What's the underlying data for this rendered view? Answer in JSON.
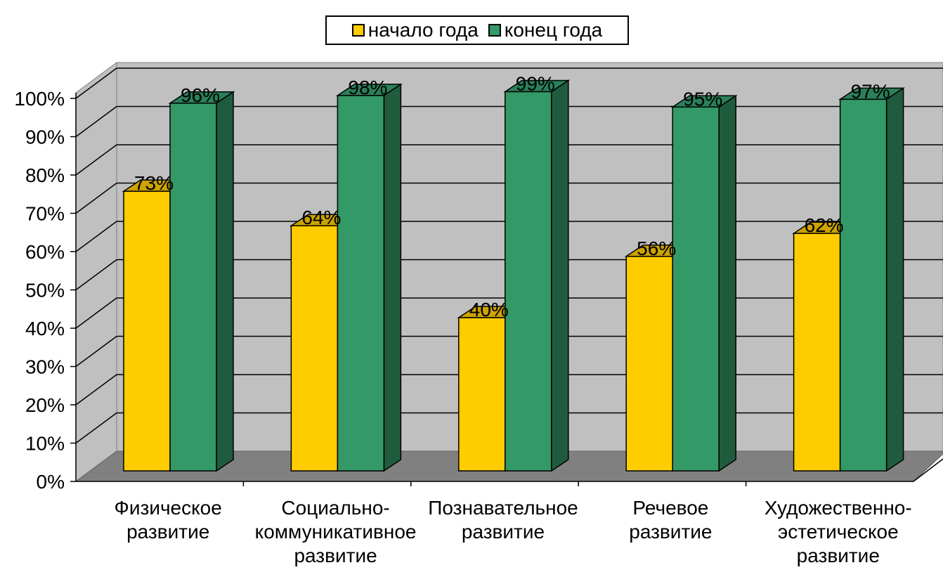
{
  "chart_data": {
    "type": "bar",
    "categories": [
      "Физическое\nразвитие",
      "Социально-\nкоммуникативное\nразвитие",
      "Познавательное\nразвитие",
      "Речевое\nразвитие",
      "Художественно-\nэстетическое\nразвитие"
    ],
    "series": [
      {
        "name": "начало года",
        "values": [
          73,
          64,
          40,
          56,
          62
        ],
        "labels": [
          "73%",
          "64%",
          "40%",
          "56%",
          "62%"
        ]
      },
      {
        "name": "конец года",
        "values": [
          96,
          98,
          99,
          95,
          97
        ],
        "labels": [
          "96%",
          "98%",
          "99%",
          "95%",
          "97%"
        ]
      }
    ],
    "y_ticks": [
      "0%",
      "10%",
      "20%",
      "30%",
      "40%",
      "50%",
      "60%",
      "70%",
      "80%",
      "90%",
      "100%"
    ],
    "ylim": [
      0,
      100
    ],
    "title": "",
    "xlabel": "",
    "ylabel": "",
    "grid": true,
    "legend_position": "top-center",
    "three_d": true,
    "colors": {
      "series1": "#FFCC00",
      "series1_side": "#B38F00",
      "series1_top": "#CCA300",
      "series2": "#339966",
      "series2_side": "#1F5C3D",
      "series2_top": "#29805A",
      "wall": "#C0C0C0",
      "floor": "#808080"
    }
  }
}
